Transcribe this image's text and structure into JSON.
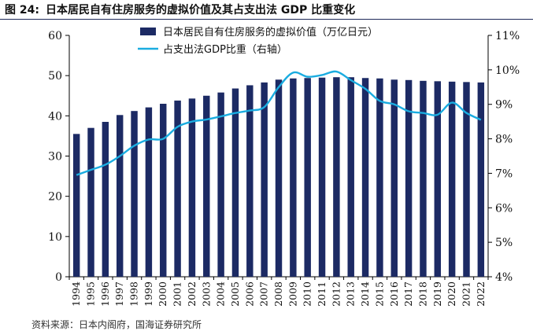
{
  "figure": {
    "label": "图 24:",
    "title": "日本居民自有住房服务的虚拟价值及其占支出法 GDP 比重变化",
    "source": "资料来源：日本内阁府，国海证券研究所"
  },
  "chart_data": {
    "type": "bar+line",
    "categories": [
      "1994",
      "1995",
      "1996",
      "1997",
      "1998",
      "1999",
      "2000",
      "2001",
      "2002",
      "2003",
      "2004",
      "2005",
      "2006",
      "2007",
      "2008",
      "2009",
      "2010",
      "2011",
      "2012",
      "2013",
      "2014",
      "2015",
      "2016",
      "2017",
      "2018",
      "2019",
      "2020",
      "2021",
      "2022"
    ],
    "series": [
      {
        "name": "日本居民自有住房服务的虚拟价值（万亿日元）",
        "type": "bar",
        "axis": "left",
        "color": "#1c2a64",
        "values": [
          35.5,
          37.0,
          38.5,
          40.2,
          41.2,
          42.1,
          43.0,
          43.8,
          44.3,
          45.0,
          45.8,
          46.8,
          47.6,
          48.3,
          49.0,
          49.3,
          49.4,
          49.5,
          49.6,
          49.6,
          49.4,
          49.3,
          49.0,
          48.9,
          48.7,
          48.6,
          48.5,
          48.4,
          48.3
        ]
      },
      {
        "name": "占支出法GDP比重（右轴）",
        "type": "line",
        "axis": "right",
        "color": "#1aace0",
        "values": [
          6.95,
          7.1,
          7.25,
          7.5,
          7.8,
          7.98,
          8.0,
          8.35,
          8.5,
          8.56,
          8.65,
          8.75,
          8.82,
          8.92,
          9.5,
          9.92,
          9.8,
          9.85,
          9.95,
          9.7,
          9.45,
          9.1,
          9.0,
          8.8,
          8.75,
          8.7,
          9.05,
          8.75,
          8.55
        ]
      }
    ],
    "y_left": {
      "min": 0,
      "max": 60,
      "ticks": [
        0,
        10,
        20,
        30,
        40,
        50,
        60
      ]
    },
    "y_right": {
      "min": 4,
      "max": 11,
      "ticks": [
        "4%",
        "5%",
        "6%",
        "7%",
        "8%",
        "9%",
        "10%",
        "11%"
      ]
    },
    "legend": {
      "position": "top-center",
      "bar_label": "日本居民自有住房服务的虚拟价值（万亿日元）",
      "line_label": "占支出法GDP比重（右轴）"
    }
  }
}
